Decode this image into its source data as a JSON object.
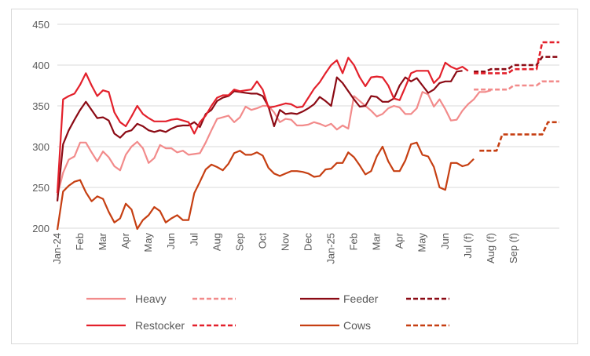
{
  "chart_data": {
    "type": "line",
    "title": "",
    "xlabel": "",
    "ylabel": "",
    "ylim": [
      200,
      450
    ],
    "yticks": [
      200,
      250,
      300,
      350,
      400,
      450
    ],
    "grid": "horizontal",
    "legend": "bottom",
    "x_tick_labels": [
      "Jan-24",
      "Feb",
      "Mar",
      "Apr",
      "May",
      "Jun",
      "Jul",
      "Aug",
      "Sep",
      "Oct",
      "Nov",
      "Dec",
      "Jan-25",
      "Feb",
      "Mar",
      "Apr",
      "May",
      "Jun",
      "Jul (f)",
      "Aug (f)",
      "Sep (f)"
    ],
    "x_tick_positions": [
      0,
      4,
      8,
      12,
      16,
      20,
      24,
      28,
      32,
      36,
      40,
      44,
      48,
      52,
      56,
      60,
      64,
      68,
      72,
      76,
      80
    ],
    "series": [
      {
        "name": "Heavy",
        "color": "#f28b8b",
        "style": "solid",
        "values": [
          240,
          268,
          284,
          288,
          305,
          305,
          293,
          282,
          294,
          287,
          276,
          271,
          290,
          300,
          306,
          298,
          280,
          286,
          302,
          298,
          298,
          293,
          295,
          290,
          291,
          292,
          305,
          320,
          334,
          336,
          338,
          330,
          336,
          349,
          345,
          347,
          350,
          350,
          342,
          330,
          334,
          333,
          326,
          326,
          327,
          330,
          328,
          325,
          328,
          321,
          326,
          322,
          362,
          356,
          350,
          344,
          337,
          340,
          347,
          350,
          348,
          340,
          340,
          347,
          367,
          364,
          349,
          358,
          346,
          332,
          333,
          344,
          352,
          358,
          367,
          367,
          369
        ]
      },
      {
        "name": "Heavy forecast",
        "color": "#f28b8b",
        "style": "dashed",
        "x": [
          73,
          75,
          76,
          79,
          80,
          84,
          85,
          88
        ],
        "values": [
          370,
          370,
          370,
          370,
          375,
          375,
          380,
          380
        ]
      },
      {
        "name": "Feeder",
        "color": "#8b0a14",
        "style": "solid",
        "values": [
          233,
          303,
          320,
          333,
          345,
          355,
          345,
          335,
          336,
          332,
          316,
          311,
          318,
          320,
          328,
          325,
          320,
          318,
          320,
          318,
          322,
          325,
          326,
          326,
          330,
          324,
          340,
          345,
          356,
          360,
          362,
          368,
          367,
          366,
          365,
          365,
          362,
          349,
          325,
          345,
          340,
          341,
          340,
          343,
          347,
          352,
          361,
          356,
          350,
          385,
          378,
          368,
          358,
          349,
          350,
          362,
          361,
          355,
          355,
          359,
          375,
          385,
          380,
          384,
          375,
          366,
          370,
          378,
          380,
          380,
          392,
          393
        ]
      },
      {
        "name": "Feeder forecast",
        "color": "#8b0a14",
        "style": "dashed",
        "x": [
          73,
          75,
          76,
          79,
          80,
          84,
          85,
          88
        ],
        "values": [
          392,
          392,
          395,
          395,
          400,
          400,
          410,
          410
        ]
      },
      {
        "name": "Restocker",
        "color": "#e3202b",
        "style": "solid",
        "values": [
          243,
          358,
          362,
          365,
          376,
          390,
          375,
          362,
          369,
          367,
          342,
          330,
          325,
          337,
          350,
          340,
          335,
          331,
          331,
          331,
          333,
          334,
          332,
          330,
          316,
          330,
          338,
          350,
          360,
          363,
          363,
          370,
          368,
          369,
          370,
          380,
          370,
          348,
          349,
          351,
          353,
          352,
          348,
          349,
          360,
          371,
          379,
          390,
          400,
          406,
          390,
          409,
          400,
          385,
          374,
          385,
          386,
          385,
          375,
          359,
          357,
          373,
          390,
          393,
          393,
          393,
          378,
          385,
          403,
          398,
          395,
          398,
          393
        ]
      },
      {
        "name": "Restocker forecast",
        "color": "#e3202b",
        "style": "dashed",
        "x": [
          73,
          75,
          76,
          79,
          80,
          84,
          85,
          88
        ],
        "values": [
          390,
          390,
          390,
          390,
          395,
          395,
          428,
          428
        ]
      },
      {
        "name": "Cows",
        "color": "#c63f12",
        "style": "solid",
        "values": [
          198,
          245,
          252,
          257,
          259,
          244,
          233,
          239,
          236,
          220,
          207,
          212,
          230,
          223,
          199,
          210,
          216,
          226,
          221,
          207,
          212,
          216,
          210,
          210,
          243,
          257,
          272,
          278,
          275,
          271,
          279,
          292,
          295,
          290,
          290,
          293,
          289,
          274,
          267,
          264,
          267,
          270,
          270,
          269,
          267,
          263,
          264,
          272,
          273,
          280,
          280,
          293,
          287,
          277,
          266,
          270,
          288,
          300,
          282,
          270,
          270,
          283,
          303,
          305,
          290,
          288,
          275,
          250,
          247,
          280,
          280,
          276,
          278,
          285
        ]
      },
      {
        "name": "Cows forecast",
        "color": "#c63f12",
        "style": "dashed",
        "x": [
          74,
          77,
          78,
          81,
          82,
          85,
          86,
          88
        ],
        "values": [
          295,
          295,
          315,
          315,
          315,
          315,
          330,
          330
        ]
      }
    ],
    "legend_entries": [
      {
        "label": "Heavy",
        "color": "#f28b8b"
      },
      {
        "label": "Feeder",
        "color": "#8b0a14"
      },
      {
        "label": "Restocker",
        "color": "#e3202b"
      },
      {
        "label": "Cows",
        "color": "#c63f12"
      }
    ]
  }
}
